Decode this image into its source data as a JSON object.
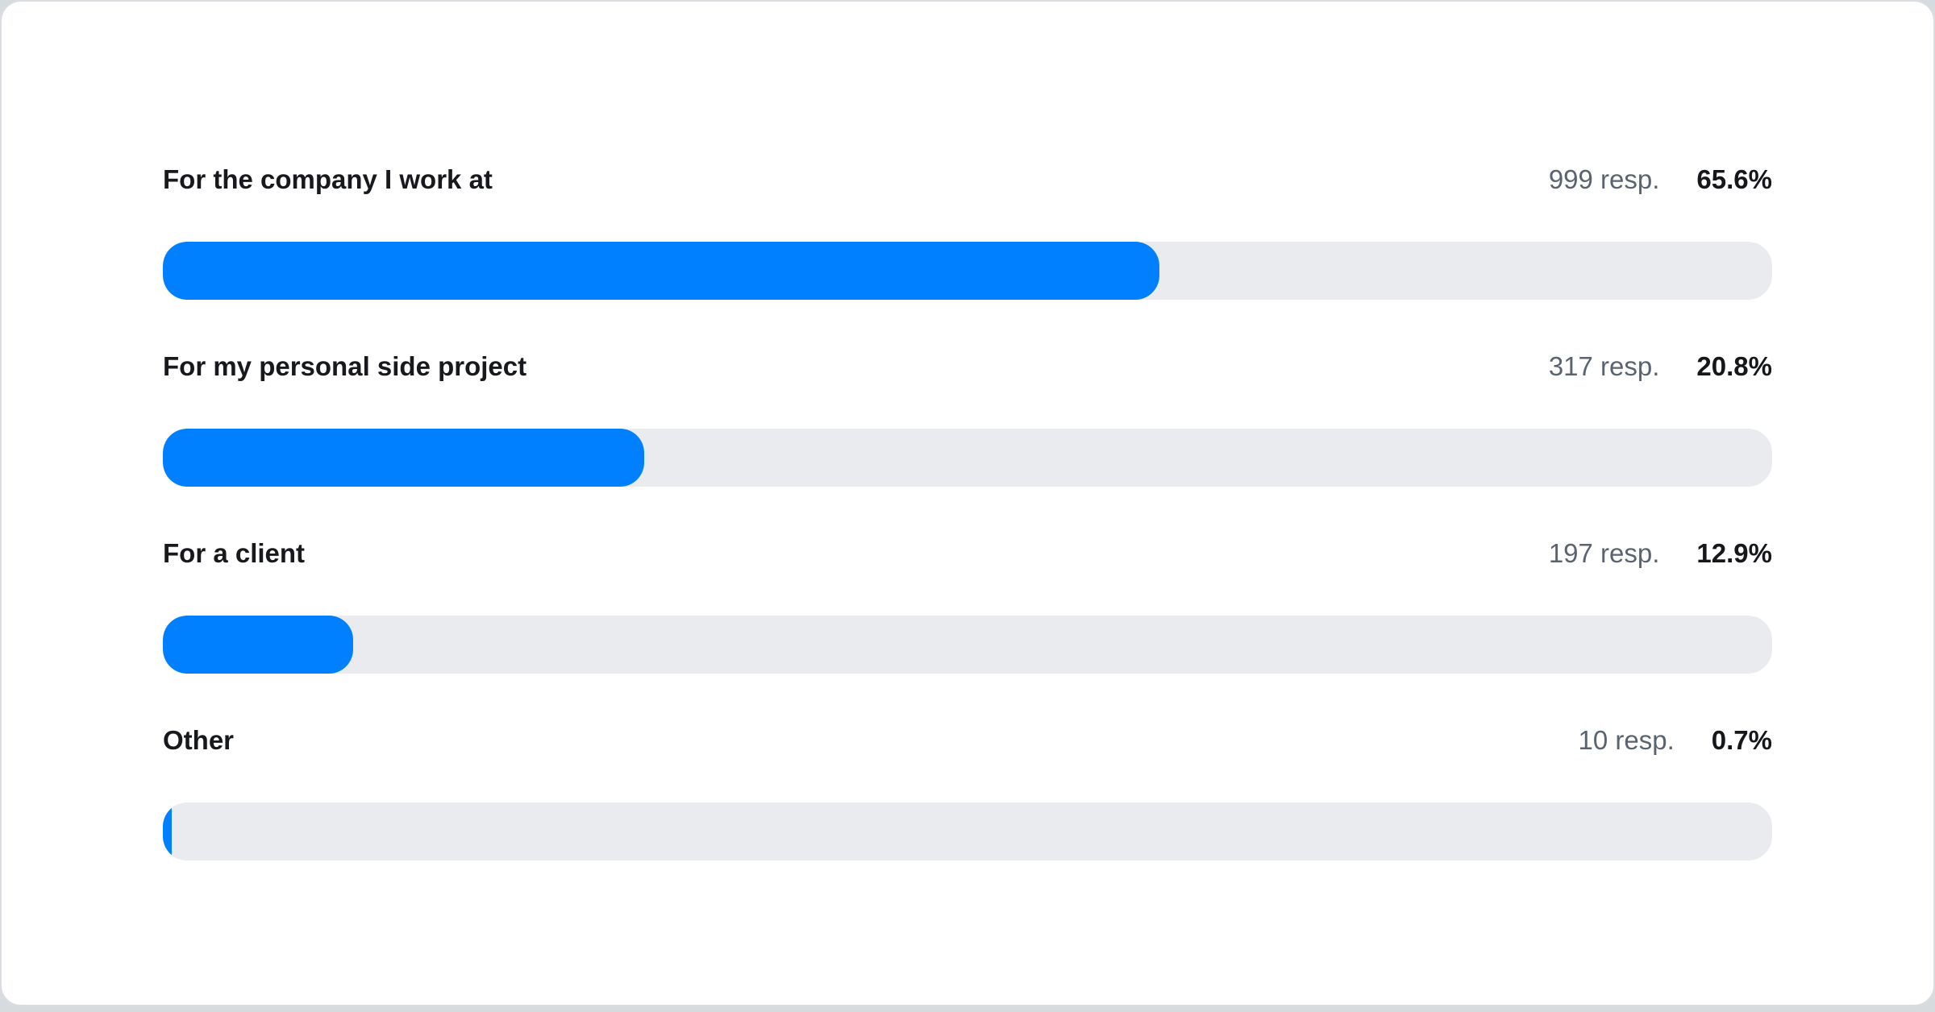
{
  "chart_data": {
    "type": "bar",
    "orientation": "horizontal",
    "title": "",
    "legend": false,
    "grid": false,
    "categories": [
      "For the company I work at",
      "For my personal side project",
      "For a client",
      "Other"
    ],
    "series": [
      {
        "name": "responses",
        "values": [
          999,
          317,
          197,
          10
        ]
      },
      {
        "name": "percent",
        "values": [
          65.6,
          20.8,
          12.9,
          0.7
        ]
      }
    ],
    "rows": [
      {
        "label": "For the company I work at",
        "responses": 999,
        "responses_label": "999 resp.",
        "percent": 65.6,
        "percent_label": "65.6%",
        "bar_width_pct": 61.9
      },
      {
        "label": "For my personal side project",
        "responses": 317,
        "responses_label": "317 resp.",
        "percent": 20.8,
        "percent_label": "20.8%",
        "bar_width_pct": 29.9
      },
      {
        "label": "For a client",
        "responses": 197,
        "responses_label": "197 resp.",
        "percent": 12.9,
        "percent_label": "12.9%",
        "bar_width_pct": 11.8
      },
      {
        "label": "Other",
        "responses": 10,
        "responses_label": "10 resp.",
        "percent": 0.7,
        "percent_label": "0.7%",
        "bar_width_pct": 0.55
      }
    ],
    "colors": {
      "bar_fill": "#0080ff",
      "bar_track": "#e9ebef",
      "label_text": "#17191c",
      "responses_text": "#5a6370",
      "percent_text": "#15171a",
      "card_border": "#d9dce0",
      "page_background": "#d8dbde",
      "card_background": "#ffffff"
    }
  }
}
